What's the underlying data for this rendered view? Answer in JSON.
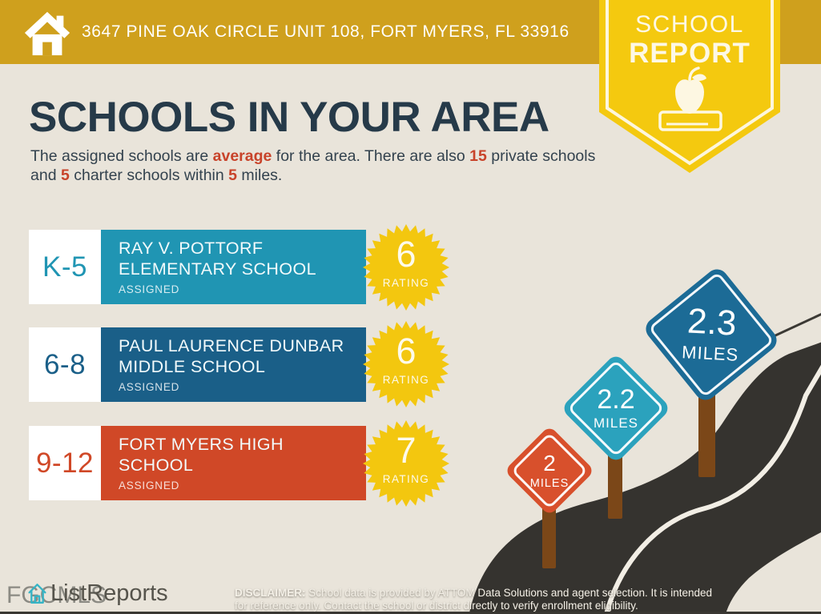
{
  "header": {
    "address": "3647 PINE OAK CIRCLE UNIT 108, FORT MYERS, FL 33916"
  },
  "ribbon": {
    "line1": "SCHOOL",
    "line2": "REPORT"
  },
  "main": {
    "title": "SCHOOLS IN YOUR AREA",
    "desc": {
      "t1": "The assigned schools are ",
      "h1": "average",
      "t2": " for the area. There are also ",
      "h2": "15",
      "t3": " private schools and ",
      "h3": "5",
      "t4": " charter schools within ",
      "h4": "5",
      "t5": " miles."
    }
  },
  "schools": [
    {
      "grades": "K-5",
      "name_line1": "RAY V. POTTORF",
      "name_line2": "ELEMENTARY SCHOOL",
      "status": "ASSIGNED",
      "rating": "6",
      "rating_label": "RATING",
      "color": "#2095B3"
    },
    {
      "grades": "6-8",
      "name_line1": "PAUL LAURENCE DUNBAR",
      "name_line2": "MIDDLE SCHOOL",
      "status": "ASSIGNED",
      "rating": "6",
      "rating_label": "RATING",
      "color": "#1A5F88"
    },
    {
      "grades": "9-12",
      "name_line1": "FORT MYERS HIGH",
      "name_line2": "SCHOOL",
      "status": "ASSIGNED",
      "rating": "7",
      "rating_label": "RATING",
      "color": "#D04827"
    }
  ],
  "distance_signs": [
    {
      "value": "2",
      "unit": "MILES",
      "color": "#D8502C"
    },
    {
      "value": "2.2",
      "unit": "MILES",
      "color": "#2BA2BD"
    },
    {
      "value": "2.3",
      "unit": "MILES",
      "color": "#1C6B96"
    }
  ],
  "footer": {
    "mls_watermark": "FGCMLS",
    "brand": "ListReports",
    "disclaimer_label": "DISCLAIMER:",
    "disclaimer_line1": " School data is provided by ATTOM Data Solutions and agent selection. It is intended",
    "disclaimer_line2": "for reference only. Contact the school or district directly to verify enrollment eligibility."
  },
  "colors": {
    "header_gold": "#CFA01D",
    "ribbon_yellow": "#F4C90F",
    "background_beige": "#E9E4DA",
    "navy_text": "#263A49",
    "highlight_red": "#C8432A",
    "star_yellow": "#F3C70F",
    "road_dark": "#35332F",
    "post_brown": "#7B4718",
    "teal": "#2095B3",
    "dark_blue": "#1A5F88",
    "orange": "#D04827",
    "listreports_teal": "#36B4C5"
  }
}
